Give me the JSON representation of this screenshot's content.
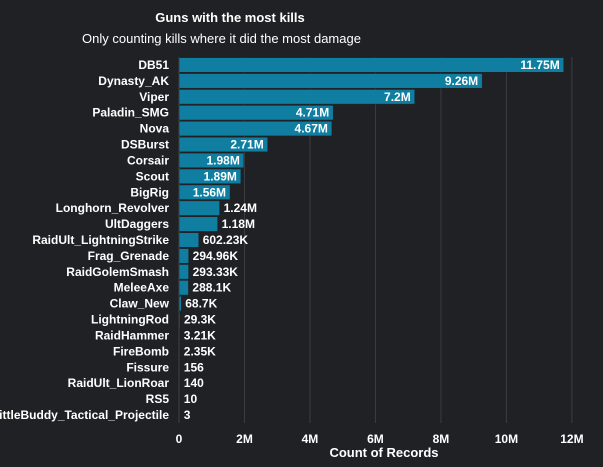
{
  "chart_data": {
    "type": "bar",
    "orientation": "horizontal",
    "title": "Guns with the most kills",
    "subtitle": "Only counting kills where it did the most damage",
    "xlabel": "Count of Records",
    "ylabel": "",
    "xlim": [
      0,
      12400000
    ],
    "xticks": [
      0,
      2000000,
      4000000,
      6000000,
      8000000,
      10000000,
      12000000
    ],
    "xtick_labels": [
      "0",
      "2M",
      "4M",
      "6M",
      "8M",
      "10M",
      "12M"
    ],
    "bar_color": "#0f7ea0",
    "grid": true,
    "categories": [
      "DB51",
      "Dynasty_AK",
      "Viper",
      "Paladin_SMG",
      "Nova",
      "DSBurst",
      "Corsair",
      "Scout",
      "BigRig",
      "Longhorn_Revolver",
      "UltDaggers",
      "RaidUlt_LightningStrike",
      "Frag_Grenade",
      "RaidGolemSmash",
      "MeleeAxe",
      "Claw_New",
      "LightningRod",
      "RaidHammer",
      "FireBomb",
      "Fissure",
      "RaidUlt_LionRoar",
      "RS5",
      "LittleBuddy_Tactical_Projectile"
    ],
    "values": [
      11750000,
      9260000,
      7200000,
      4710000,
      4670000,
      2710000,
      1980000,
      1890000,
      1560000,
      1240000,
      1180000,
      602230,
      294960,
      293330,
      288100,
      68700,
      29300,
      3210,
      2350,
      156,
      140,
      10,
      3
    ],
    "value_labels": [
      "11.75M",
      "9.26M",
      "7.2M",
      "4.71M",
      "4.67M",
      "2.71M",
      "1.98M",
      "1.89M",
      "1.56M",
      "1.24M",
      "1.18M",
      "602.23K",
      "294.96K",
      "293.33K",
      "288.1K",
      "68.7K",
      "29.3K",
      "3.21K",
      "2.35K",
      "156",
      "140",
      "10",
      "3"
    ]
  }
}
